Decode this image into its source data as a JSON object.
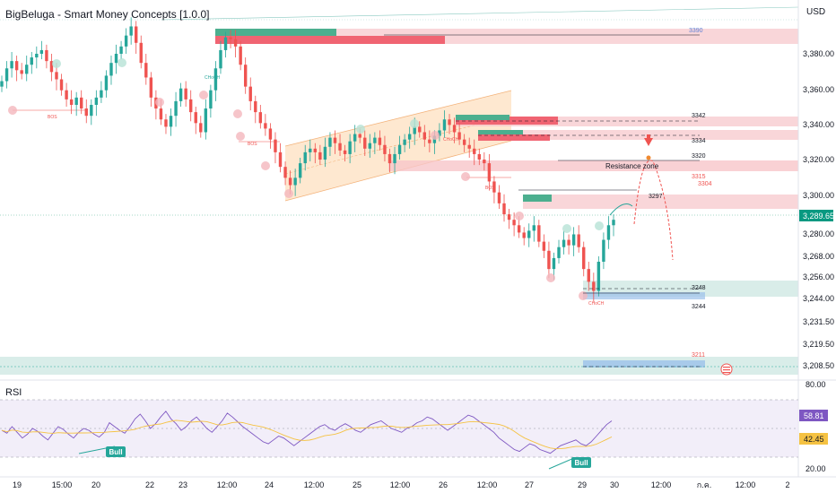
{
  "header": {
    "title": "BigBeluga - Smart Money Concepts [1.0.0]",
    "currency": "USD"
  },
  "rsi_panel": {
    "title": "RSI",
    "value": "58.81",
    "ma_value": "42.45",
    "axis_ticks": [
      "80.00",
      "20.00"
    ]
  },
  "colors": {
    "up": "#26a69a",
    "down": "#ef5350",
    "supply": "#f7c5c9",
    "demand": "#cfe9e3",
    "channel": "#fde0c0",
    "rsi_line": "#7e57c2",
    "rsi_ma": "#f5c242",
    "last_price": "#089981"
  },
  "chart_data": {
    "type": "candlestick",
    "title": "BigBeluga - Smart Money Concepts [1.0.0]",
    "price_axis": {
      "ticks": [
        "3,380.00",
        "3,360.00",
        "3,340.00",
        "3,320.00",
        "3,300.00",
        "3,289.65",
        "3,280.00",
        "3,268.00",
        "3,256.00",
        "3,244.00",
        "3,231.50",
        "3,219.50",
        "3,208.50"
      ],
      "range": [
        3200,
        3400
      ]
    },
    "time_axis": {
      "ticks": [
        "19",
        "15:00",
        "20",
        "22",
        "23",
        "12:00",
        "24",
        "12:00",
        "25",
        "12:00",
        "26",
        "12:00",
        "27",
        "29",
        "30",
        "12:00",
        "ก.ค.",
        "12:00",
        "2"
      ]
    },
    "last_price": "3,289.65",
    "levels": [
      {
        "label": "3390",
        "value": 3390
      },
      {
        "label": "3342",
        "value": 3342
      },
      {
        "label": "3334",
        "value": 3334
      },
      {
        "label": "3320",
        "value": 3320
      },
      {
        "label": "3315",
        "value": 3315
      },
      {
        "label": "3304",
        "value": 3304
      },
      {
        "label": "3297",
        "value": 3297
      },
      {
        "label": "3248",
        "value": 3248
      },
      {
        "label": "3244",
        "value": 3244
      },
      {
        "label": "3211",
        "value": 3211
      }
    ],
    "annotations": [
      "Resistance zone",
      "BOS",
      "CHoCH",
      "Bull"
    ],
    "closes": [
      3365,
      3372,
      3376,
      3371,
      3369,
      3374,
      3378,
      3380,
      3382,
      3376,
      3370,
      3366,
      3360,
      3355,
      3352,
      3356,
      3350,
      3346,
      3352,
      3356,
      3360,
      3368,
      3375,
      3380,
      3384,
      3390,
      3395,
      3386,
      3375,
      3367,
      3356,
      3350,
      3344,
      3340,
      3346,
      3354,
      3361,
      3355,
      3348,
      3342,
      3337,
      3350,
      3360,
      3372,
      3382,
      3389,
      3388,
      3384,
      3374,
      3362,
      3354,
      3348,
      3342,
      3339,
      3333,
      3326,
      3318,
      3312,
      3308,
      3312,
      3320,
      3326,
      3328,
      3326,
      3322,
      3329,
      3334,
      3331,
      3327,
      3325,
      3332,
      3336,
      3334,
      3328,
      3331,
      3334,
      3330,
      3325,
      3320,
      3325,
      3330,
      3333,
      3336,
      3340,
      3337,
      3333,
      3331,
      3335,
      3338,
      3344,
      3341,
      3337,
      3333,
      3330,
      3328,
      3325,
      3322,
      3320,
      3310,
      3304,
      3298,
      3292,
      3289,
      3286,
      3282,
      3279,
      3283,
      3286,
      3277,
      3272,
      3262,
      3268,
      3274,
      3278,
      3275,
      3281,
      3274,
      3262,
      3255,
      3250,
      3266,
      3278,
      3286,
      3289
    ]
  }
}
